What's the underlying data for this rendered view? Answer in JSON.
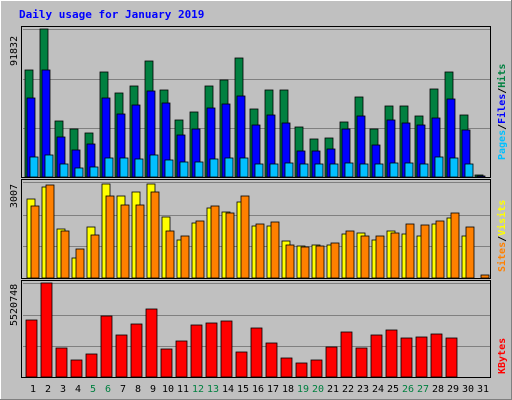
{
  "chart_data": {
    "type": "bar",
    "title": "Daily usage for January 2019",
    "days": [
      "1",
      "2",
      "3",
      "4",
      "5",
      "6",
      "7",
      "8",
      "9",
      "10",
      "11",
      "12",
      "13",
      "14",
      "15",
      "16",
      "17",
      "18",
      "19",
      "20",
      "21",
      "22",
      "23",
      "24",
      "25",
      "26",
      "27",
      "28",
      "29",
      "30",
      "31"
    ],
    "weekend_days": [
      "5",
      "6",
      "12",
      "13",
      "19",
      "20",
      "26",
      "27"
    ],
    "panels": [
      {
        "name": "hits-files-pages",
        "ymax_label": "91832",
        "ymax": 91832,
        "series": [
          {
            "name": "Hits",
            "color": "#008040",
            "values": [
              66600,
              91832,
              34600,
              29600,
              27600,
              65300,
              52000,
              56400,
              72000,
              53700,
              35600,
              40200,
              56700,
              60300,
              73900,
              42000,
              54200,
              54200,
              31300,
              23500,
              24500,
              34300,
              49600,
              29900,
              44100,
              44100,
              37700,
              54600,
              65300,
              38700,
              1200
            ]
          },
          {
            "name": "Files",
            "color": "#0000ff",
            "values": [
              49000,
              66400,
              24800,
              16700,
              20500,
              48900,
              39100,
              44900,
              53200,
              46200,
              25800,
              29800,
              42600,
              45200,
              50300,
              32500,
              38600,
              33400,
              16000,
              15900,
              17400,
              30000,
              37800,
              19900,
              35200,
              33500,
              32100,
              36600,
              48600,
              29400,
              500
            ]
          },
          {
            "name": "Pages",
            "color": "#00c0ff",
            "values": [
              12200,
              13900,
              8200,
              5800,
              6300,
              11700,
              11800,
              11300,
              13800,
              10500,
              9300,
              9000,
              10900,
              11900,
              11600,
              8300,
              7900,
              8700,
              7900,
              8000,
              8300,
              8900,
              7800,
              7900,
              8400,
              8600,
              8300,
              12100,
              12000,
              7900,
              300
            ]
          }
        ]
      },
      {
        "name": "visits-sites",
        "ymax_label": "3007",
        "ymax": 3007,
        "series": [
          {
            "name": "Visits",
            "color": "#ffff00",
            "values": [
              2460,
              2860,
              1520,
              640,
              1610,
              2960,
              2560,
              2690,
              2960,
              1900,
              1200,
              1710,
              2200,
              2060,
              2390,
              1640,
              1640,
              1150,
              990,
              1030,
              1030,
              1370,
              1400,
              1200,
              1460,
              1370,
              1330,
              1680,
              1880,
              1300,
              0
            ]
          },
          {
            "name": "Sites",
            "color": "#ff8000",
            "values": [
              2260,
              2900,
              1460,
              920,
              1360,
              2580,
              2300,
              2300,
              2680,
              1460,
              1300,
              1780,
              2240,
              2040,
              2560,
              1690,
              1740,
              1040,
              980,
              990,
              1100,
              1460,
              1300,
              1300,
              1420,
              1680,
              1650,
              1780,
              2050,
              1600,
              100
            ]
          }
        ]
      },
      {
        "name": "kbytes",
        "ymax_label": "5520748",
        "ymax": 5520748,
        "series": [
          {
            "name": "KBytes",
            "color": "#ff0000",
            "values": [
              3370000,
              5520748,
              1700000,
              1000000,
              1330000,
              3560000,
              2450000,
              3120000,
              4000000,
              1620000,
              2090000,
              3070000,
              3200000,
              3260000,
              1480000,
              2880000,
              2000000,
              1090000,
              850000,
              1020000,
              1750000,
              2620000,
              1690000,
              2450000,
              2780000,
              2300000,
              2320000,
              2500000,
              2280000,
              0,
              0
            ]
          }
        ]
      }
    ],
    "legend_right_top": [
      "Pages",
      "/",
      "Files",
      "/",
      "Hits"
    ],
    "legend_right_mid": [
      "Sites",
      "/",
      "Visits"
    ],
    "legend_right_bottom": [
      "KBytes"
    ]
  }
}
